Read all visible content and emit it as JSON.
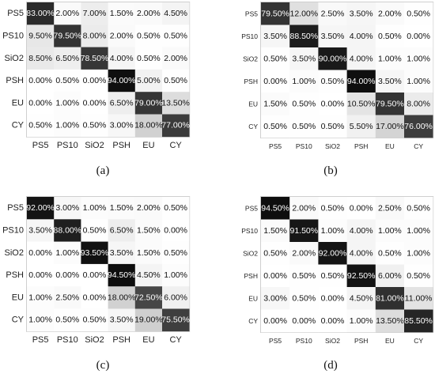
{
  "chart_data": [
    {
      "type": "heatmap",
      "caption": "(a)",
      "x_labels": [
        "PS5",
        "PS10",
        "SiO2",
        "PSH",
        "EU",
        "CY"
      ],
      "y_labels": [
        "PS5",
        "PS10",
        "SiO2",
        "PSH",
        "EU",
        "CY"
      ],
      "values": [
        [
          83.0,
          2.0,
          7.0,
          1.5,
          2.0,
          4.5
        ],
        [
          9.5,
          79.5,
          8.0,
          2.0,
          0.5,
          0.5
        ],
        [
          8.5,
          6.5,
          78.5,
          4.0,
          0.5,
          2.0
        ],
        [
          0.0,
          0.5,
          0.0,
          94.0,
          5.0,
          0.5
        ],
        [
          0.0,
          1.0,
          0.0,
          6.5,
          79.0,
          13.5
        ],
        [
          0.5,
          1.0,
          0.5,
          3.0,
          18.0,
          77.0
        ]
      ],
      "labels": [
        [
          "83.00%",
          "2.00%",
          "7.00%",
          "1.50%",
          "2.00%",
          "4.50%"
        ],
        [
          "9.50%",
          "79.50%",
          "8.00%",
          "2.00%",
          "0.50%",
          "0.50%"
        ],
        [
          "8.50%",
          "6.50%",
          "78.50%",
          "4.00%",
          "0.50%",
          "2.00%"
        ],
        [
          "0.00%",
          "0.50%",
          "0.00%",
          "94.00%",
          "5.00%",
          "0.50%"
        ],
        [
          "0.00%",
          "1.00%",
          "0.00%",
          "6.50%",
          "79.00%",
          "13.50%"
        ],
        [
          "0.50%",
          "1.00%",
          "0.50%",
          "3.00%",
          "18.00%",
          "77.00%"
        ]
      ]
    },
    {
      "type": "heatmap",
      "caption": "(b)",
      "x_labels": [
        "PS5",
        "PS10",
        "SiO2",
        "PSH",
        "EU",
        "CY"
      ],
      "y_labels": [
        "PS5",
        "PS10",
        "SiO2",
        "PSH",
        "EU",
        "CY"
      ],
      "values": [
        [
          79.5,
          12.0,
          2.5,
          3.5,
          2.0,
          0.5
        ],
        [
          3.5,
          88.5,
          3.5,
          4.0,
          0.5,
          0.0
        ],
        [
          0.5,
          3.5,
          90.0,
          4.0,
          1.0,
          1.0
        ],
        [
          0.0,
          1.0,
          0.5,
          94.0,
          3.5,
          1.0
        ],
        [
          1.5,
          0.5,
          0.0,
          10.5,
          79.5,
          8.0
        ],
        [
          0.5,
          0.5,
          0.5,
          5.5,
          17.0,
          76.0
        ]
      ],
      "labels": [
        [
          "79.50%",
          "12.00%",
          "2.50%",
          "3.50%",
          "2.00%",
          "0.50%"
        ],
        [
          "3.50%",
          "88.50%",
          "3.50%",
          "4.00%",
          "0.50%",
          "0.00%"
        ],
        [
          "0.50%",
          "3.50%",
          "90.00%",
          "4.00%",
          "1.00%",
          "1.00%"
        ],
        [
          "0.00%",
          "1.00%",
          "0.50%",
          "94.00%",
          "3.50%",
          "1.00%"
        ],
        [
          "1.50%",
          "0.50%",
          "0.00%",
          "10.50%",
          "79.50%",
          "8.00%"
        ],
        [
          "0.50%",
          "0.50%",
          "0.50%",
          "5.50%",
          "17.00%",
          "76.00%"
        ]
      ]
    },
    {
      "type": "heatmap",
      "caption": "(c)",
      "x_labels": [
        "PS5",
        "PS10",
        "SiO2",
        "PSH",
        "EU",
        "CY"
      ],
      "y_labels": [
        "PS5",
        "PS10",
        "SiO2",
        "PSH",
        "EU",
        "CY"
      ],
      "values": [
        [
          92.0,
          3.0,
          1.0,
          1.5,
          2.0,
          0.5
        ],
        [
          3.5,
          88.0,
          0.5,
          6.5,
          1.5,
          0.0
        ],
        [
          0.0,
          1.0,
          93.5,
          3.5,
          1.5,
          0.5
        ],
        [
          0.0,
          0.0,
          0.0,
          94.5,
          4.5,
          1.0
        ],
        [
          1.0,
          2.5,
          0.0,
          18.0,
          72.5,
          6.0
        ],
        [
          1.0,
          0.5,
          0.5,
          3.5,
          19.0,
          75.5
        ]
      ],
      "labels": [
        [
          "92.00%",
          "3.00%",
          "1.00%",
          "1.50%",
          "2.00%",
          "0.50%"
        ],
        [
          "3.50%",
          "88.00%",
          "0.50%",
          "6.50%",
          "1.50%",
          "0.00%"
        ],
        [
          "0.00%",
          "1.00%",
          "93.50%",
          "3.50%",
          "1.50%",
          "0.50%"
        ],
        [
          "0.00%",
          "0.00%",
          "0.00%",
          "94.50%",
          "4.50%",
          "1.00%"
        ],
        [
          "1.00%",
          "2.50%",
          "0.00%",
          "18.00%",
          "72.50%",
          "6.00%"
        ],
        [
          "1.00%",
          "0.50%",
          "0.50%",
          "3.50%",
          "19.00%",
          "75.50%"
        ]
      ]
    },
    {
      "type": "heatmap",
      "caption": "(d)",
      "x_labels": [
        "PS5",
        "PS10",
        "SiO2",
        "PSH",
        "EU",
        "CY"
      ],
      "y_labels": [
        "PS5",
        "PS10",
        "SiO2",
        "PSH",
        "EU",
        "CY"
      ],
      "values": [
        [
          94.5,
          2.0,
          0.5,
          0.0,
          2.5,
          0.5
        ],
        [
          1.5,
          91.5,
          1.0,
          4.0,
          1.0,
          1.0
        ],
        [
          0.5,
          2.0,
          92.0,
          4.0,
          0.5,
          1.0
        ],
        [
          0.0,
          0.5,
          0.5,
          92.5,
          6.0,
          0.5
        ],
        [
          3.0,
          0.5,
          0.0,
          4.5,
          81.0,
          11.0
        ],
        [
          0.0,
          0.0,
          0.0,
          1.0,
          13.5,
          85.5
        ]
      ],
      "labels": [
        [
          "94.50%",
          "2.00%",
          "0.50%",
          "0.00%",
          "2.50%",
          "0.50%"
        ],
        [
          "1.50%",
          "91.50%",
          "1.00%",
          "4.00%",
          "1.00%",
          "1.00%"
        ],
        [
          "0.50%",
          "2.00%",
          "92.00%",
          "4.00%",
          "0.50%",
          "1.00%"
        ],
        [
          "0.00%",
          "0.50%",
          "0.50%",
          "92.50%",
          "6.00%",
          "0.50%"
        ],
        [
          "3.00%",
          "0.50%",
          "0.00%",
          "4.50%",
          "81.00%",
          "11.00%"
        ],
        [
          "0.00%",
          "0.00%",
          "0.00%",
          "1.00%",
          "13.50%",
          "85.50%"
        ]
      ]
    }
  ]
}
